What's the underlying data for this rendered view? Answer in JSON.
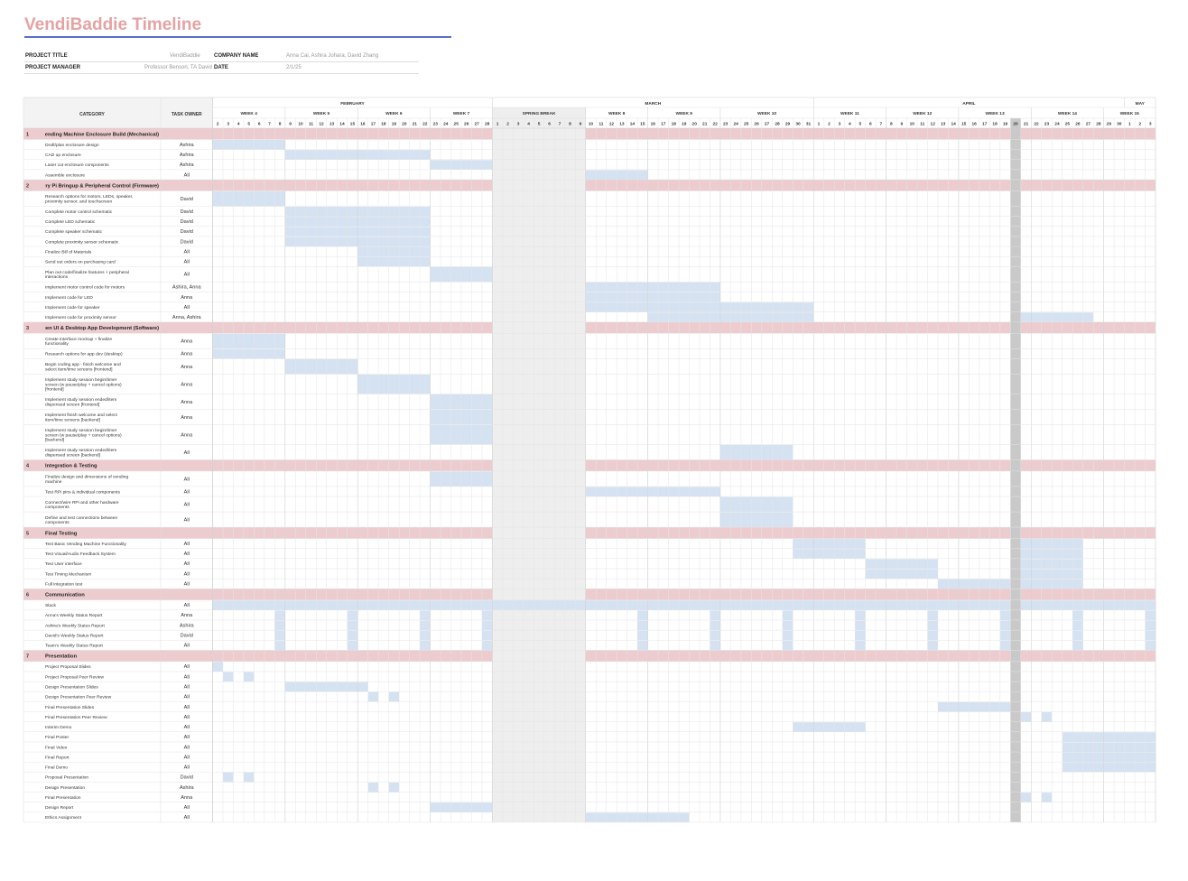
{
  "title": "VendiBaddie Timeline",
  "project_info": {
    "project_title_label": "PROJECT TITLE",
    "project_title": "VendiBaddie",
    "company_name_label": "COMPANY NAME",
    "company_name": "Anna Cai, Ashira Johara, David Zhang",
    "project_manager_label": "PROJECT MANAGER",
    "project_manager": "Professor Benson, TA David",
    "date_label": "DATE",
    "date": "2/1/25"
  },
  "colors": {
    "title": "#e3a3a3",
    "title_rule": "#5a6fc2",
    "category_band": "#eccccf",
    "task_bar": "#d5e2f2",
    "header_bg": "#f3f3f3",
    "spring_break": "#eeeeee",
    "today_marker": "#c9c9c9"
  },
  "chart_data": {
    "type": "gantt",
    "headers": {
      "category": "CATEGORY",
      "owner": "TASK OWNER"
    },
    "months": [
      {
        "name": "FEBRUARY",
        "start": 0,
        "end": 27
      },
      {
        "name": "MARCH",
        "start": 27,
        "end": 58
      },
      {
        "name": "APRIL",
        "start": 58,
        "end": 88
      },
      {
        "name": "MAY",
        "start": 88,
        "end": 91
      }
    ],
    "weeks": [
      {
        "name": "WEEK 4",
        "start": 0,
        "end": 7
      },
      {
        "name": "WEEK 5",
        "start": 7,
        "end": 14
      },
      {
        "name": "WEEK 6",
        "start": 14,
        "end": 21
      },
      {
        "name": "WEEK 7",
        "start": 21,
        "end": 27
      },
      {
        "name": "SPRING BREAK",
        "start": 27,
        "end": 36
      },
      {
        "name": "WEEK 8",
        "start": 36,
        "end": 42
      },
      {
        "name": "WEEK 9",
        "start": 42,
        "end": 49
      },
      {
        "name": "WEEK 10",
        "start": 49,
        "end": 58
      },
      {
        "name": "WEEK 11",
        "start": 58,
        "end": 65
      },
      {
        "name": "WEEK 12",
        "start": 65,
        "end": 72
      },
      {
        "name": "WEEK 13",
        "start": 72,
        "end": 79
      },
      {
        "name": "WEEK 14",
        "start": 79,
        "end": 86
      },
      {
        "name": "WEEK 15",
        "start": 86,
        "end": 91
      }
    ],
    "days": [
      2,
      3,
      4,
      5,
      6,
      7,
      8,
      9,
      10,
      11,
      12,
      13,
      14,
      15,
      16,
      17,
      18,
      19,
      20,
      21,
      22,
      23,
      24,
      25,
      26,
      27,
      28,
      1,
      2,
      3,
      4,
      5,
      6,
      7,
      8,
      9,
      10,
      11,
      12,
      13,
      14,
      15,
      16,
      17,
      18,
      19,
      20,
      21,
      22,
      23,
      24,
      25,
      26,
      27,
      28,
      29,
      30,
      31,
      1,
      2,
      3,
      4,
      5,
      6,
      7,
      8,
      9,
      10,
      11,
      12,
      13,
      14,
      15,
      16,
      17,
      18,
      19,
      20,
      21,
      22,
      23,
      24,
      25,
      26,
      27,
      28,
      29,
      30,
      1,
      2,
      3
    ],
    "spring_break": [
      27,
      36
    ],
    "today": 77,
    "rows": [
      {
        "type": "category",
        "num": "1",
        "name": "Vending Machine Enclosure Build (Mechanical)"
      },
      {
        "name": "Draft/plan enclosure design",
        "owner": "Ashira",
        "bars": [
          [
            0,
            7
          ]
        ]
      },
      {
        "name": "CAD up enclosure",
        "owner": "Ashira",
        "bars": [
          [
            7,
            21
          ]
        ]
      },
      {
        "name": "Laser cut enclosure components",
        "owner": "Ashira",
        "bars": [
          [
            21,
            27
          ]
        ]
      },
      {
        "name": "Assemble enclosure",
        "owner": "All",
        "bars": [
          [
            36,
            42
          ]
        ]
      },
      {
        "type": "category",
        "num": "2",
        "name": "Raspberry Pi Bringup & Peripheral Control (Firmware)"
      },
      {
        "name": [
          "Research options for motors, LEDs, speaker,",
          "proximity sensor, and touchscreen"
        ],
        "owner": "David",
        "bars": [
          [
            0,
            7
          ]
        ]
      },
      {
        "name": "Complete motor control schematic",
        "owner": "David",
        "bars": [
          [
            7,
            21
          ]
        ]
      },
      {
        "name": "Complete LED schematic",
        "owner": "David",
        "bars": [
          [
            7,
            21
          ]
        ]
      },
      {
        "name": "Complete speaker schematic",
        "owner": "David",
        "bars": [
          [
            7,
            21
          ]
        ]
      },
      {
        "name": "Complete proximity sensor schematic",
        "owner": "David",
        "bars": [
          [
            7,
            21
          ]
        ]
      },
      {
        "name": "Finalize Bill of Materials",
        "owner": "All",
        "bars": [
          [
            14,
            21
          ]
        ]
      },
      {
        "name": "Send out orders on purchasing card",
        "owner": "All",
        "bars": [
          [
            14,
            21
          ]
        ]
      },
      {
        "name": [
          "Plan out code/finalize features + peripheral",
          "interactions"
        ],
        "owner": "All",
        "bars": [
          [
            21,
            27
          ]
        ]
      },
      {
        "name": "Implement motor control code for motors",
        "owner": "Ashira, Anna",
        "bars": [
          [
            36,
            49
          ]
        ]
      },
      {
        "name": "Implement code for LED",
        "owner": "Anna",
        "bars": [
          [
            36,
            49
          ]
        ]
      },
      {
        "name": "Implement code for speaker",
        "owner": "All",
        "bars": [
          [
            36,
            58
          ]
        ]
      },
      {
        "name": "Implement code for proximity sensor",
        "owner": "Anna, Ashira",
        "bars": [
          [
            42,
            58
          ],
          [
            78,
            85
          ]
        ]
      },
      {
        "type": "category",
        "num": "3",
        "name": "Touchscreen UI & Desktop App Development (Software)"
      },
      {
        "name": [
          "Create interface mockup + finalize",
          "functionality"
        ],
        "owner": "Anna",
        "bars": [
          [
            0,
            7
          ]
        ]
      },
      {
        "name": "Research options for app dev (desktop)",
        "owner": "Anna",
        "bars": [
          [
            0,
            7
          ]
        ]
      },
      {
        "name": [
          "Begin coding app - finish welcome and",
          "select item/time screens [frontend]"
        ],
        "owner": "Anna",
        "bars": [
          [
            7,
            14
          ]
        ]
      },
      {
        "name": [
          "Implement study session begin/timer",
          "screen (w pause/play + cancel options)",
          "[frontend]"
        ],
        "owner": "Anna",
        "bars": [
          [
            14,
            21
          ]
        ]
      },
      {
        "name": [
          "Implement study session ended/item",
          "dispensed screen [frontend]"
        ],
        "owner": "Anna",
        "bars": [
          [
            21,
            27
          ]
        ]
      },
      {
        "name": [
          "Implement finish welcome and select",
          "item/time screens [backend]"
        ],
        "owner": "Anna",
        "bars": [
          [
            21,
            27
          ]
        ]
      },
      {
        "name": [
          "Implement study session begin/timer",
          "screen (w pause/play + cancel options)",
          "[backend]"
        ],
        "owner": "Anna",
        "bars": [
          [
            21,
            27
          ]
        ]
      },
      {
        "name": [
          "Implement study session ended/item",
          "dispensed screen [backend]"
        ],
        "owner": "All",
        "bars": [
          [
            49,
            56
          ]
        ]
      },
      {
        "type": "category",
        "num": "4",
        "name": "Integration & Testing"
      },
      {
        "name": [
          "Finalize design and dimensions of vending",
          "machine"
        ],
        "owner": "All",
        "bars": [
          [
            21,
            27
          ]
        ]
      },
      {
        "name": "Test RPi pins & individual components",
        "owner": "All",
        "bars": [
          [
            36,
            49
          ]
        ]
      },
      {
        "name": [
          "Connect/wire RPi and other hardware",
          "components"
        ],
        "owner": "All",
        "bars": [
          [
            49,
            56
          ]
        ]
      },
      {
        "name": [
          "Define and test connections between",
          "components"
        ],
        "owner": "All",
        "bars": [
          [
            49,
            56
          ]
        ]
      },
      {
        "type": "category",
        "num": "5",
        "name": "Final Testing"
      },
      {
        "name": "Test Basic Vending Machine Functionality",
        "owner": "All",
        "bars": [
          [
            56,
            63
          ],
          [
            78,
            84
          ]
        ]
      },
      {
        "name": "Test Visual/Audio Feedback System",
        "owner": "All",
        "bars": [
          [
            56,
            63
          ],
          [
            78,
            84
          ]
        ]
      },
      {
        "name": "Test User interface",
        "owner": "All",
        "bars": [
          [
            63,
            70
          ],
          [
            78,
            84
          ]
        ]
      },
      {
        "name": "Test Timing Mechanism",
        "owner": "All",
        "bars": [
          [
            63,
            70
          ],
          [
            78,
            84
          ]
        ]
      },
      {
        "name": "Full integration test",
        "owner": "All",
        "bars": [
          [
            70,
            77
          ],
          [
            78,
            84
          ]
        ]
      },
      {
        "type": "category",
        "num": "6",
        "name": "Communication"
      },
      {
        "name": "Slack",
        "owner": "All",
        "bars": [
          [
            0,
            91
          ]
        ]
      },
      {
        "name": "Anna's Weekly Status Report",
        "owner": "Anna",
        "bars": [
          [
            6,
            7
          ],
          [
            13,
            14
          ],
          [
            20,
            21
          ],
          [
            26,
            27
          ],
          [
            41,
            42
          ],
          [
            48,
            49
          ],
          [
            55,
            56
          ],
          [
            62,
            63
          ],
          [
            69,
            70
          ],
          [
            76,
            77
          ],
          [
            83,
            84
          ],
          [
            90,
            91
          ]
        ]
      },
      {
        "name": "Ashira's Weekly Status Report",
        "owner": "Ashira",
        "bars": [
          [
            6,
            7
          ],
          [
            13,
            14
          ],
          [
            20,
            21
          ],
          [
            26,
            27
          ],
          [
            41,
            42
          ],
          [
            48,
            49
          ],
          [
            55,
            56
          ],
          [
            62,
            63
          ],
          [
            69,
            70
          ],
          [
            76,
            77
          ],
          [
            83,
            84
          ],
          [
            90,
            91
          ]
        ]
      },
      {
        "name": "David's Weekly Status Report",
        "owner": "David",
        "bars": [
          [
            6,
            7
          ],
          [
            13,
            14
          ],
          [
            20,
            21
          ],
          [
            26,
            27
          ],
          [
            41,
            42
          ],
          [
            48,
            49
          ],
          [
            55,
            56
          ],
          [
            62,
            63
          ],
          [
            69,
            70
          ],
          [
            76,
            77
          ],
          [
            83,
            84
          ],
          [
            90,
            91
          ]
        ]
      },
      {
        "name": "Team's Weekly Status Report",
        "owner": "All",
        "bars": [
          [
            6,
            7
          ],
          [
            13,
            14
          ],
          [
            20,
            21
          ],
          [
            26,
            27
          ],
          [
            41,
            42
          ],
          [
            48,
            49
          ],
          [
            55,
            56
          ],
          [
            62,
            63
          ],
          [
            69,
            70
          ],
          [
            76,
            77
          ],
          [
            83,
            84
          ],
          [
            90,
            91
          ]
        ]
      },
      {
        "type": "category",
        "num": "7",
        "name": "Presentation"
      },
      {
        "name": "Project Proposal Slides",
        "owner": "All",
        "bars": [
          [
            0,
            1
          ]
        ]
      },
      {
        "name": "Project Proposal Peer Review",
        "owner": "All",
        "bars": [
          [
            1,
            2
          ],
          [
            3,
            4
          ]
        ]
      },
      {
        "name": "Design Presentation Slides",
        "owner": "All",
        "bars": [
          [
            7,
            15
          ]
        ]
      },
      {
        "name": "Design Presentation Peer Review",
        "owner": "All",
        "bars": [
          [
            15,
            16
          ],
          [
            17,
            18
          ]
        ]
      },
      {
        "name": "Final Presentation Slides",
        "owner": "All",
        "bars": [
          [
            70,
            78
          ]
        ]
      },
      {
        "name": "Final Presentation Peer Review",
        "owner": "All",
        "bars": [
          [
            78,
            79
          ],
          [
            80,
            81
          ]
        ]
      },
      {
        "name": "Interim Demo",
        "owner": "All",
        "bars": [
          [
            56,
            63
          ]
        ]
      },
      {
        "name": "Final Poster",
        "owner": "All",
        "bars": [
          [
            82,
            91
          ]
        ]
      },
      {
        "name": "Final Video",
        "owner": "All",
        "bars": [
          [
            82,
            91
          ]
        ]
      },
      {
        "name": "Final Report",
        "owner": "All",
        "bars": [
          [
            82,
            91
          ]
        ]
      },
      {
        "name": "Final Demo",
        "owner": "All",
        "bars": [
          [
            82,
            91
          ]
        ]
      },
      {
        "name": "Proposal Presentation",
        "owner": "David",
        "bars": [
          [
            1,
            2
          ],
          [
            3,
            4
          ]
        ]
      },
      {
        "name": "Design Presentation",
        "owner": "Ashira",
        "bars": [
          [
            15,
            16
          ],
          [
            17,
            18
          ]
        ]
      },
      {
        "name": "Final Presentation",
        "owner": "Anna",
        "bars": [
          [
            78,
            79
          ],
          [
            80,
            81
          ]
        ]
      },
      {
        "name": "Design Report",
        "owner": "All",
        "bars": [
          [
            21,
            27
          ]
        ]
      },
      {
        "name": "Ethics Assignment",
        "owner": "All",
        "bars": [
          [
            36,
            46
          ]
        ]
      }
    ]
  }
}
